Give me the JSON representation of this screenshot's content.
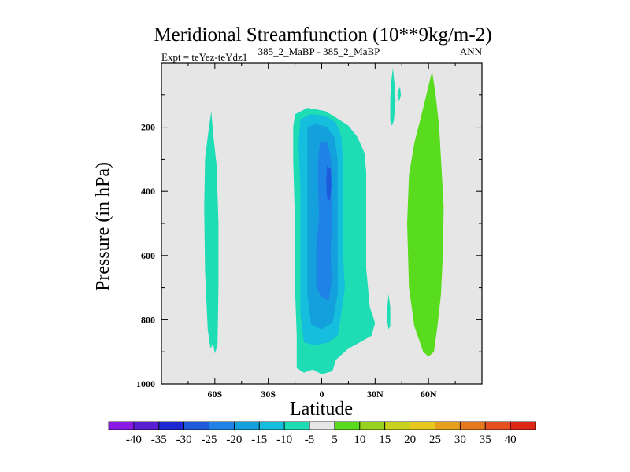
{
  "chart_data": {
    "type": "contour",
    "title": "Meridional Streamfunction (10**9kg/m-2)",
    "subtitle_left": "Expt = teYez-teYdz1",
    "subtitle_center": "385_2_MaBP - 385_2_MaBP",
    "subtitle_right": "ANN",
    "xlabel": "Latitude",
    "ylabel": "Pressure (in hPa)",
    "xlim": [
      -90,
      90
    ],
    "ylim": [
      1000,
      0
    ],
    "x_ticks": [
      {
        "value": -60,
        "label": "60S"
      },
      {
        "value": -30,
        "label": "30S"
      },
      {
        "value": 0,
        "label": "0"
      },
      {
        "value": 30,
        "label": "30N"
      },
      {
        "value": 60,
        "label": "60N"
      }
    ],
    "y_ticks": [
      {
        "value": 200,
        "label": "200"
      },
      {
        "value": 400,
        "label": "400"
      },
      {
        "value": 600,
        "label": "600"
      },
      {
        "value": 800,
        "label": "800"
      },
      {
        "value": 1000,
        "label": "1000"
      }
    ],
    "background_color": "#e6e6e6",
    "colorbar": {
      "levels": [
        "-40",
        "-35",
        "-30",
        "-25",
        "-20",
        "-15",
        "-10",
        "-5",
        "5",
        "10",
        "15",
        "20",
        "25",
        "30",
        "35",
        "40"
      ],
      "colors": [
        "#8c1ae6",
        "#5a1ed2",
        "#1e28d2",
        "#1e5adc",
        "#1e82e6",
        "#14a0dc",
        "#14bedc",
        "#1edcb4",
        "#e6e6e6",
        "#5adc1e",
        "#96d21e",
        "#c8d21e",
        "#e6c81e",
        "#e6a01e",
        "#e6781e",
        "#e6501e",
        "#dc2814"
      ]
    },
    "regions": [
      {
        "name": "southern-hemisphere-cell",
        "value_range": [
          -10,
          -5
        ],
        "color": "#1edcb4",
        "points": [
          [
            -62,
            150
          ],
          [
            -61,
            220
          ],
          [
            -59,
            320
          ],
          [
            -58,
            500
          ],
          [
            -58,
            700
          ],
          [
            -58.5,
            880
          ],
          [
            -60,
            905
          ],
          [
            -61,
            875
          ],
          [
            -62.5,
            890
          ],
          [
            -64,
            830
          ],
          [
            -65.5,
            650
          ],
          [
            -66,
            450
          ],
          [
            -65.5,
            300
          ],
          [
            -64,
            230
          ]
        ]
      },
      {
        "name": "hadley-cell-outer",
        "value_range": [
          -10,
          -5
        ],
        "color": "#1edcb4",
        "points": [
          [
            -15,
            160
          ],
          [
            -8,
            140
          ],
          [
            2,
            150
          ],
          [
            8,
            170
          ],
          [
            15,
            195
          ],
          [
            20,
            230
          ],
          [
            24,
            280
          ],
          [
            25,
            340
          ],
          [
            25,
            480
          ],
          [
            25,
            640
          ],
          [
            27,
            760
          ],
          [
            30,
            810
          ],
          [
            28,
            850
          ],
          [
            20,
            875
          ],
          [
            15,
            890
          ],
          [
            8,
            925
          ],
          [
            6,
            960
          ],
          [
            0,
            970
          ],
          [
            -5,
            955
          ],
          [
            -10,
            965
          ],
          [
            -14,
            950
          ],
          [
            -14,
            850
          ],
          [
            -15,
            700
          ],
          [
            -15,
            500
          ],
          [
            -16,
            300
          ],
          [
            -16,
            200
          ]
        ]
      },
      {
        "name": "hadley-cell-mid",
        "value_range": [
          -15,
          -10
        ],
        "color": "#14bedc",
        "points": [
          [
            -12,
            175
          ],
          [
            -6,
            160
          ],
          [
            2,
            165
          ],
          [
            8,
            185
          ],
          [
            11,
            230
          ],
          [
            12,
            300
          ],
          [
            12,
            450
          ],
          [
            12,
            600
          ],
          [
            13,
            700
          ],
          [
            11,
            780
          ],
          [
            9,
            850
          ],
          [
            4,
            870
          ],
          [
            -4,
            880
          ],
          [
            -10,
            870
          ],
          [
            -12,
            780
          ],
          [
            -12,
            600
          ],
          [
            -12,
            400
          ],
          [
            -13,
            250
          ]
        ]
      },
      {
        "name": "hadley-cell-inner",
        "value_range": [
          -20,
          -15
        ],
        "color": "#14a0dc",
        "points": [
          [
            -8,
            200
          ],
          [
            -3,
            190
          ],
          [
            3,
            200
          ],
          [
            7,
            230
          ],
          [
            9,
            300
          ],
          [
            9,
            450
          ],
          [
            9,
            600
          ],
          [
            9,
            720
          ],
          [
            6,
            810
          ],
          [
            0,
            830
          ],
          [
            -6,
            815
          ],
          [
            -8,
            720
          ],
          [
            -8,
            550
          ],
          [
            -8,
            350
          ]
        ]
      },
      {
        "name": "hadley-cell-core",
        "value_range": [
          -25,
          -20
        ],
        "color": "#1e82e6",
        "points": [
          [
            -1,
            250
          ],
          [
            3,
            245
          ],
          [
            5,
            290
          ],
          [
            6,
            380
          ],
          [
            6,
            480
          ],
          [
            5,
            580
          ],
          [
            5.5,
            680
          ],
          [
            4,
            740
          ],
          [
            0,
            730
          ],
          [
            -3,
            700
          ],
          [
            -3,
            580
          ],
          [
            -1.5,
            480
          ],
          [
            -2,
            380
          ],
          [
            -2,
            300
          ]
        ]
      },
      {
        "name": "hadley-cell-peak",
        "value_range": [
          -30,
          -25
        ],
        "color": "#1e5adc",
        "points": [
          [
            3,
            320
          ],
          [
            5,
            330
          ],
          [
            5.5,
            380
          ],
          [
            4.5,
            430
          ],
          [
            3,
            420
          ],
          [
            2.5,
            370
          ]
        ]
      },
      {
        "name": "northern-ferrel-cell",
        "value_range": [
          5,
          10
        ],
        "color": "#5adc1e",
        "points": [
          [
            62,
            25
          ],
          [
            64,
            100
          ],
          [
            66,
            200
          ],
          [
            67,
            300
          ],
          [
            68.5,
            450
          ],
          [
            68,
            600
          ],
          [
            67,
            720
          ],
          [
            65,
            820
          ],
          [
            63,
            900
          ],
          [
            60,
            915
          ],
          [
            57,
            900
          ],
          [
            52,
            820
          ],
          [
            49,
            700
          ],
          [
            48,
            500
          ],
          [
            49,
            350
          ],
          [
            52,
            250
          ],
          [
            57,
            140
          ]
        ]
      },
      {
        "name": "upper-sliver-1",
        "value_range": [
          -10,
          -5
        ],
        "color": "#1edcb4",
        "points": [
          [
            40,
            15
          ],
          [
            41,
            70
          ],
          [
            41.5,
            120
          ],
          [
            40.5,
            180
          ],
          [
            39.5,
            195
          ],
          [
            38.5,
            180
          ],
          [
            38.5,
            110
          ],
          [
            39,
            60
          ]
        ]
      },
      {
        "name": "upper-sliver-2",
        "value_range": [
          -10,
          -5
        ],
        "color": "#1edcb4",
        "points": [
          [
            44,
            75
          ],
          [
            44.5,
            100
          ],
          [
            43.5,
            120
          ],
          [
            42.5,
            100
          ],
          [
            43,
            85
          ]
        ]
      },
      {
        "name": "lower-sliver",
        "value_range": [
          -10,
          -5
        ],
        "color": "#1edcb4",
        "points": [
          [
            37.5,
            720
          ],
          [
            38.5,
            760
          ],
          [
            38.5,
            820
          ],
          [
            37.5,
            830
          ],
          [
            36.5,
            790
          ]
        ]
      }
    ]
  }
}
